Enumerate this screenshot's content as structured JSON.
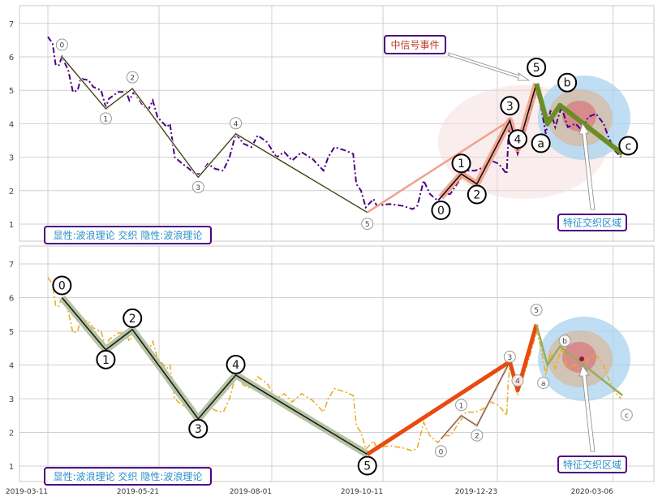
{
  "chart_data": {
    "type": "line",
    "x_ticks": [
      "2019-03-11",
      "2019-05-21",
      "2019-08-01",
      "2019-10-11",
      "2019-12-23",
      "2020-03-06"
    ],
    "y_ticks": [
      1,
      2,
      3,
      4,
      5,
      6,
      7
    ],
    "ylim": [
      0.5,
      7.5
    ],
    "grid": true,
    "series": [
      [
        "2019-03-11",
        6.6
      ],
      [
        "2019-03-14",
        6.4
      ],
      [
        "2019-03-16",
        5.75
      ],
      [
        "2019-03-18",
        5.75
      ],
      [
        "2019-03-20",
        6.0
      ],
      [
        "2019-03-24",
        5.6
      ],
      [
        "2019-03-27",
        4.95
      ],
      [
        "2019-03-30",
        5.0
      ],
      [
        "2019-04-01",
        5.35
      ],
      [
        "2019-04-06",
        5.3
      ],
      [
        "2019-04-09",
        5.1
      ],
      [
        "2019-04-14",
        5.0
      ],
      [
        "2019-04-17",
        4.5
      ],
      [
        "2019-04-19",
        4.75
      ],
      [
        "2019-04-25",
        4.95
      ],
      [
        "2019-04-30",
        4.95
      ],
      [
        "2019-05-02",
        4.7
      ],
      [
        "2019-05-05",
        4.95
      ],
      [
        "2019-05-10",
        4.6
      ],
      [
        "2019-05-14",
        4.4
      ],
      [
        "2019-05-17",
        4.7
      ],
      [
        "2019-05-20",
        4.2
      ],
      [
        "2019-05-26",
        3.9
      ],
      [
        "2019-05-28",
        4.0
      ],
      [
        "2019-05-31",
        3.0
      ],
      [
        "2019-06-05",
        2.8
      ],
      [
        "2019-06-08",
        2.7
      ],
      [
        "2019-06-13",
        2.5
      ],
      [
        "2019-06-17",
        2.5
      ],
      [
        "2019-06-21",
        2.8
      ],
      [
        "2019-06-26",
        2.65
      ],
      [
        "2019-07-01",
        2.6
      ],
      [
        "2019-07-05",
        3.0
      ],
      [
        "2019-07-09",
        3.7
      ],
      [
        "2019-07-14",
        3.4
      ],
      [
        "2019-07-19",
        3.3
      ],
      [
        "2019-07-23",
        3.65
      ],
      [
        "2019-07-29",
        3.45
      ],
      [
        "2019-08-04",
        3.0
      ],
      [
        "2019-08-09",
        3.15
      ],
      [
        "2019-08-14",
        2.9
      ],
      [
        "2019-08-20",
        3.15
      ],
      [
        "2019-08-27",
        2.95
      ],
      [
        "2019-09-03",
        2.6
      ],
      [
        "2019-09-06",
        3.0
      ],
      [
        "2019-09-10",
        3.3
      ],
      [
        "2019-09-17",
        3.2
      ],
      [
        "2019-09-22",
        3.1
      ],
      [
        "2019-09-24",
        2.2
      ],
      [
        "2019-09-27",
        2.0
      ],
      [
        "2019-09-30",
        1.5
      ],
      [
        "2019-10-02",
        1.6
      ],
      [
        "2019-10-05",
        1.75
      ],
      [
        "2019-10-07",
        1.55
      ],
      [
        "2019-10-15",
        1.6
      ],
      [
        "2019-10-23",
        1.55
      ],
      [
        "2019-10-30",
        1.45
      ],
      [
        "2019-11-02",
        1.55
      ],
      [
        "2019-11-06",
        2.3
      ],
      [
        "2019-11-10",
        1.9
      ],
      [
        "2019-11-15",
        1.7
      ],
      [
        "2019-11-19",
        1.9
      ],
      [
        "2019-11-23",
        1.9
      ],
      [
        "2019-11-28",
        2.25
      ],
      [
        "2019-12-03",
        2.6
      ],
      [
        "2019-12-09",
        2.6
      ],
      [
        "2019-12-14",
        2.7
      ],
      [
        "2019-12-19",
        2.9
      ],
      [
        "2019-12-24",
        2.8
      ],
      [
        "2019-12-29",
        2.5
      ],
      [
        "2019-12-30",
        3.5
      ],
      [
        "2019-12-31",
        4.0
      ],
      [
        "2020-01-05",
        3.1
      ],
      [
        "2020-01-09",
        3.7
      ],
      [
        "2020-01-13",
        4.3
      ],
      [
        "2020-01-17",
        5.0
      ],
      [
        "2020-01-20",
        4.5
      ],
      [
        "2020-01-23",
        3.7
      ],
      [
        "2020-01-26",
        4.4
      ],
      [
        "2020-01-29",
        3.9
      ],
      [
        "2020-02-02",
        4.5
      ],
      [
        "2020-02-06",
        3.9
      ],
      [
        "2020-02-11",
        4.0
      ],
      [
        "2020-02-15",
        3.8
      ],
      [
        "2020-02-19",
        4.2
      ],
      [
        "2020-02-24",
        4.3
      ],
      [
        "2020-02-29",
        4.0
      ],
      [
        "2020-03-03",
        3.6
      ],
      [
        "2020-03-07",
        3.2
      ],
      [
        "2020-03-11",
        3.0
      ]
    ],
    "wave_primary": {
      "labels": [
        "0",
        "1",
        "2",
        "3",
        "4",
        "5"
      ],
      "points": [
        [
          "2019-03-20",
          6.0
        ],
        [
          "2019-04-17",
          4.45
        ],
        [
          "2019-05-04",
          5.05
        ],
        [
          "2019-06-15",
          2.4
        ],
        [
          "2019-07-09",
          3.7
        ],
        [
          "2019-10-01",
          1.35
        ]
      ]
    },
    "wave_secondary": {
      "labels": [
        "0",
        "1",
        "2",
        "3",
        "4",
        "5"
      ],
      "points": [
        [
          "2019-11-17",
          1.8
        ],
        [
          "2019-11-30",
          2.5
        ],
        [
          "2019-12-10",
          2.2
        ],
        [
          "2019-12-31",
          4.1
        ],
        [
          "2020-01-05",
          3.25
        ],
        [
          "2020-01-17",
          5.2
        ]
      ]
    },
    "wave_correction": {
      "labels": [
        "a",
        "b",
        "c"
      ],
      "points": [
        [
          "2020-01-24",
          4.0
        ],
        [
          "2020-02-01",
          4.55
        ],
        [
          "2020-03-12",
          3.1
        ]
      ]
    },
    "panels": [
      {
        "series_color": "#4b0082",
        "annotation": "中信号事件",
        "zone_label": "特征交织区域",
        "footer": "显性:波浪理论 交织 隐性:波浪理论"
      },
      {
        "series_color": "#e8b020",
        "zone_label": "特征交织区域",
        "footer": "显性:波浪理论 交织 隐性:波浪理论"
      }
    ],
    "colors": {
      "primary_outline": "#b7c4a3",
      "signal_line": "#e84a10",
      "secondary_outline": "#f2a08a",
      "correction": "#6b8e23",
      "annotation_text": "#c0392b",
      "zone_text": "#2a8fc7",
      "box_border": "#4b0082"
    }
  }
}
